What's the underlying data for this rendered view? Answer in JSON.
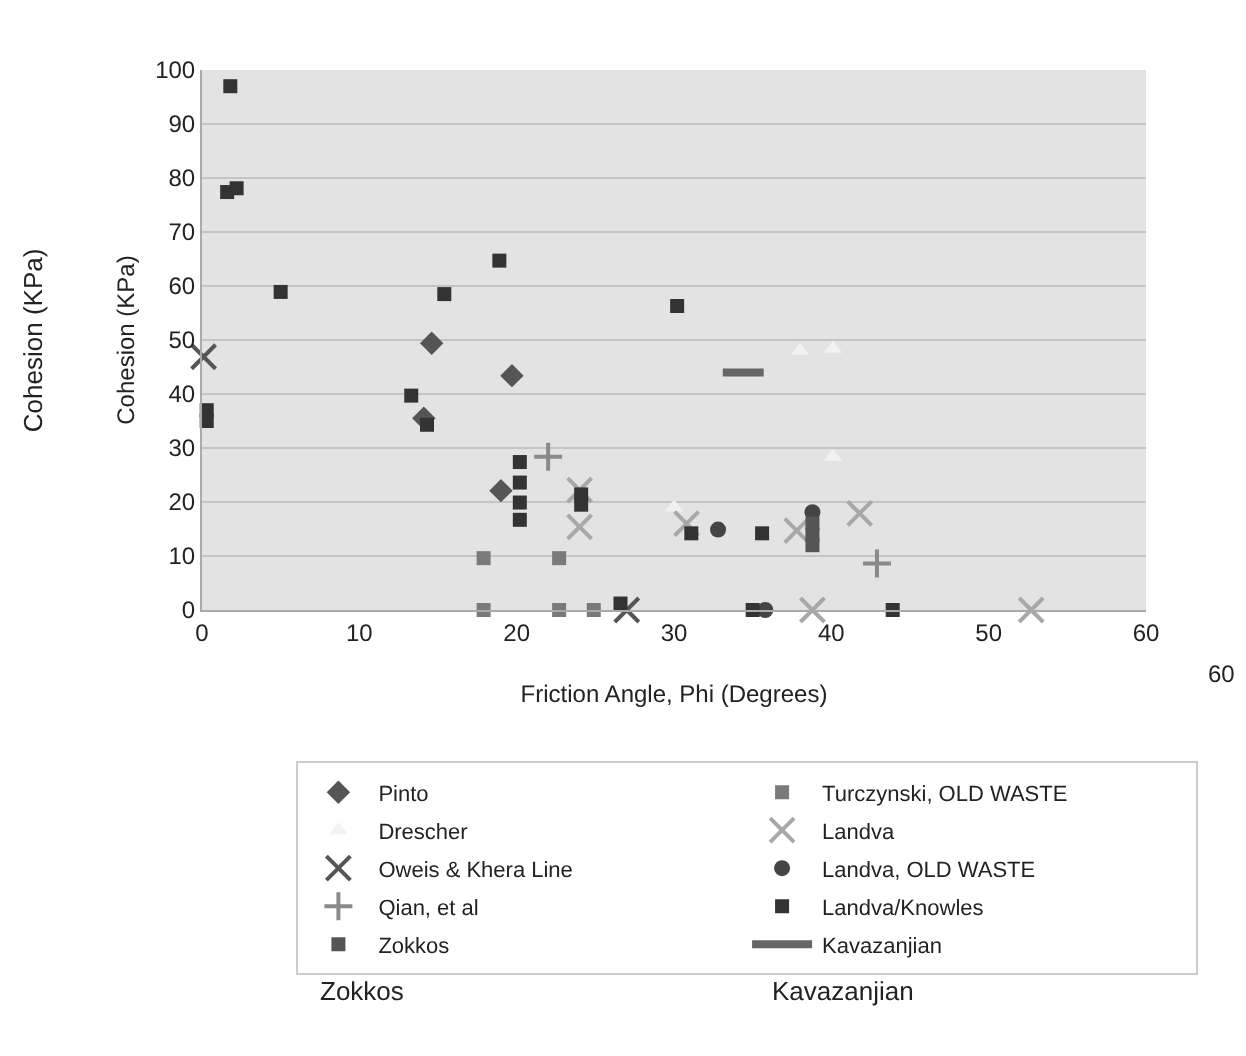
{
  "chart_data": {
    "type": "scatter",
    "xlabel": "Friction Angle, Phi (Degrees)",
    "ylabel": "Cohesion (KPa)",
    "xlim": [
      0,
      60
    ],
    "xticks": [
      0,
      10,
      20,
      30,
      40,
      50,
      60
    ],
    "ylim": [
      0,
      100
    ],
    "yticks": [
      0,
      10,
      20,
      30,
      40,
      50,
      60,
      70,
      80,
      90,
      100
    ],
    "grid": "y",
    "legend": "bottom",
    "annotations": [
      "Cohesion (KPa)",
      "60",
      "Zokkos",
      "Kavazanjian"
    ],
    "series": [
      {
        "name": "Pinto",
        "color": "#555555",
        "marker": "diamond",
        "x": [
          14.6,
          19.7,
          19.0,
          14.1
        ],
        "values": [
          49.4,
          43.4,
          22.1,
          35.5
        ]
      },
      {
        "name": "Turczynski, OLD WASTE",
        "color": "#7a7a7a",
        "marker": "square",
        "x": [
          17.9,
          17.9,
          22.7,
          22.7,
          24.9
        ],
        "values": [
          9.6,
          0,
          9.6,
          0,
          0
        ]
      },
      {
        "name": "Drescher",
        "color": "#f2f2f2",
        "marker": "triangle",
        "x": [
          38,
          40.1,
          40.1,
          30
        ],
        "values": [
          48,
          48.4,
          28.4,
          19
        ]
      },
      {
        "name": "Landva",
        "color": "#a8a8a8",
        "marker": "x",
        "x": [
          24,
          24,
          30.8,
          37.8,
          41.8,
          38.8,
          52.7
        ],
        "values": [
          22.2,
          15.4,
          16,
          14.7,
          17.9,
          0,
          0
        ]
      },
      {
        "name": "Oweis & Khera Line",
        "color": "#555555",
        "marker": "x",
        "x": [
          0.1,
          27
        ],
        "values": [
          46.9,
          0
        ]
      },
      {
        "name": "Landva, OLD WASTE",
        "color": "#444444",
        "marker": "circle",
        "x": [
          32.8,
          38.8,
          35.8
        ],
        "values": [
          14.9,
          18.1,
          0
        ]
      },
      {
        "name": "Qian, et al",
        "color": "#8a8a8a",
        "marker": "cross",
        "x": [
          22,
          42.9
        ],
        "values": [
          28.4,
          8.6
        ]
      },
      {
        "name": "Landva/Knowles",
        "color": "#333333",
        "marker": "square",
        "x": [
          1.8,
          1.6,
          2.2,
          5,
          15.4,
          18.9,
          30.2,
          0.3,
          0.3,
          13.3,
          14.3,
          20.2,
          20.2,
          20.2,
          20.2,
          24.1,
          24.1,
          26.6,
          35.6,
          35,
          43.9,
          31.1
        ],
        "values": [
          97,
          77.4,
          78.1,
          58.9,
          58.5,
          64.7,
          56.3,
          37,
          35,
          39.7,
          34.3,
          27.4,
          23.6,
          19.9,
          16.7,
          21.4,
          19.5,
          1.2,
          14.2,
          0,
          0,
          14.2
        ]
      },
      {
        "name": "Zokkos",
        "color": "#555555",
        "marker": "square",
        "x": [
          38.8,
          38.8,
          38.8
        ],
        "values": [
          12,
          14,
          16
        ]
      },
      {
        "name": "Kavazanjian",
        "color": "#666666",
        "type": "line",
        "marker": "none",
        "x": [
          33.1,
          35.7
        ],
        "values": [
          44,
          44
        ]
      }
    ]
  }
}
